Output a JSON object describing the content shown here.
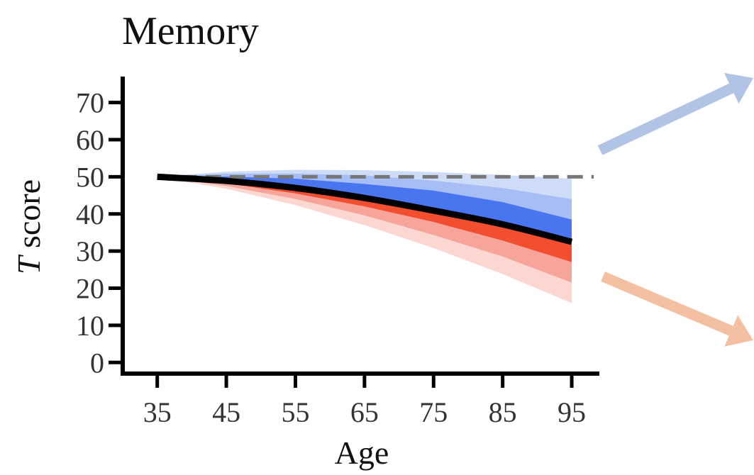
{
  "chart_data": {
    "type": "area",
    "title": "Memory",
    "xlabel": "Age",
    "ylabel_italic": "T",
    "ylabel_rest": " score",
    "xlim": [
      30,
      99
    ],
    "ylim": [
      -3,
      77
    ],
    "x_ticks": [
      35,
      45,
      55,
      65,
      75,
      85,
      95
    ],
    "y_ticks": [
      0,
      10,
      20,
      30,
      40,
      50,
      60,
      70
    ],
    "reference_line": {
      "y": 50,
      "style": "dashed",
      "color": "#777777"
    },
    "x": [
      35,
      45,
      55,
      65,
      75,
      85,
      95
    ],
    "series": [
      {
        "values": [
          50,
          48.9,
          47.0,
          44.3,
          40.9,
          37.2,
          32.5
        ],
        "color": "#000000"
      }
    ],
    "bands": [
      {
        "side": "upper",
        "color": "#cfdcf8",
        "upper": [
          50,
          51.4,
          51.9,
          51.8,
          51.3,
          50.5,
          49.5
        ],
        "lower": [
          50,
          50.9,
          50.9,
          50.4,
          49.0,
          47.0,
          44.0
        ]
      },
      {
        "side": "upper",
        "color": "#a7bef5",
        "upper": [
          50,
          50.9,
          50.9,
          50.4,
          49.0,
          47.0,
          44.0
        ],
        "lower": [
          50,
          50.1,
          49.5,
          48.1,
          46.3,
          43.2,
          38.5
        ]
      },
      {
        "side": "upper",
        "color": "#4a75f0",
        "upper": [
          50,
          50.1,
          49.5,
          48.1,
          46.3,
          43.2,
          38.5
        ],
        "lower": [
          50,
          48.9,
          47.0,
          44.3,
          40.9,
          37.2,
          32.5
        ]
      },
      {
        "side": "lower",
        "color": "#f24e30",
        "upper": [
          50,
          48.9,
          47.0,
          44.3,
          40.9,
          37.2,
          32.5
        ],
        "lower": [
          50,
          48.2,
          45.5,
          42.0,
          37.8,
          32.8,
          27.0
        ]
      },
      {
        "side": "lower",
        "color": "#f7a49a",
        "upper": [
          50,
          48.2,
          45.5,
          42.0,
          37.8,
          32.8,
          27.0
        ],
        "lower": [
          50,
          47.5,
          44.0,
          39.6,
          34.3,
          28.5,
          21.5
        ]
      },
      {
        "side": "lower",
        "color": "#fcd6d1",
        "upper": [
          50,
          47.5,
          44.0,
          39.6,
          34.3,
          28.5,
          21.5
        ],
        "lower": [
          50,
          46.8,
          42.4,
          37.0,
          30.8,
          23.8,
          16.0
        ]
      }
    ],
    "arrows": [
      {
        "name": "blue-arrow",
        "color": "#b2c4e6"
      },
      {
        "name": "orange-arrow",
        "color": "#f3c1a2"
      }
    ],
    "grid": false,
    "legend": "none"
  }
}
